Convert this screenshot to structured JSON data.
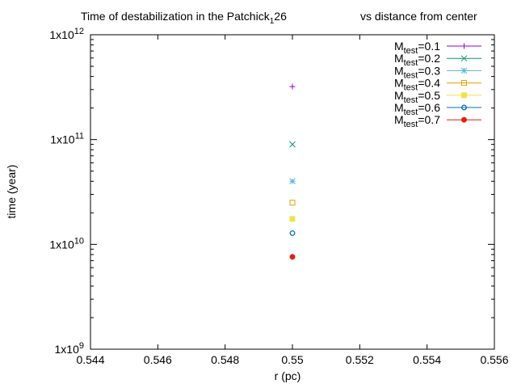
{
  "chart_data": {
    "type": "scatter",
    "title": {
      "main": "Time of destabilization in the Patchick",
      "sub": "1",
      "after": "26",
      "right": "vs distance from center"
    },
    "xlabel": "r (pc)",
    "ylabel": "time (year)",
    "xlim": [
      0.544,
      0.556
    ],
    "ylim": [
      1000000000.0,
      1000000000000.0
    ],
    "yscale": "log",
    "xticks": [
      {
        "value": 0.544,
        "label": "0.544"
      },
      {
        "value": 0.546,
        "label": "0.546"
      },
      {
        "value": 0.548,
        "label": "0.548"
      },
      {
        "value": 0.55,
        "label": "0.55"
      },
      {
        "value": 0.552,
        "label": "0.552"
      },
      {
        "value": 0.554,
        "label": "0.554"
      },
      {
        "value": 0.556,
        "label": "0.556"
      }
    ],
    "yticks": [
      {
        "value": 1000000000.0,
        "base": "1x10",
        "exp": "9"
      },
      {
        "value": 10000000000.0,
        "base": "1x10",
        "exp": "10"
      },
      {
        "value": 100000000000.0,
        "base": "1x10",
        "exp": "11"
      },
      {
        "value": 1000000000000.0,
        "base": "1x10",
        "exp": "12"
      }
    ],
    "grid": false,
    "legend_position": "top-right",
    "series": [
      {
        "name_main": "M",
        "name_sub": "test",
        "name_rest": "=0.1",
        "color": "#9400d3",
        "marker": "plus",
        "points": [
          [
            0.55,
            320000000000.0
          ]
        ]
      },
      {
        "name_main": "M",
        "name_sub": "test",
        "name_rest": "=0.2",
        "color": "#009e73",
        "marker": "cross",
        "points": [
          [
            0.55,
            90000000000.0
          ]
        ]
      },
      {
        "name_main": "M",
        "name_sub": "test",
        "name_rest": "=0.3",
        "color": "#56b4e9",
        "marker": "star",
        "points": [
          [
            0.55,
            40000000000.0
          ]
        ]
      },
      {
        "name_main": "M",
        "name_sub": "test",
        "name_rest": "=0.4",
        "color": "#e69f00",
        "marker": "open-square",
        "points": [
          [
            0.55,
            25000000000.0
          ]
        ]
      },
      {
        "name_main": "M",
        "name_sub": "test",
        "name_rest": "=0.5",
        "color": "#f0e442",
        "marker": "filled-square",
        "points": [
          [
            0.55,
            17500000000.0
          ]
        ]
      },
      {
        "name_main": "M",
        "name_sub": "test",
        "name_rest": "=0.6",
        "color": "#0072b2",
        "marker": "open-circle",
        "points": [
          [
            0.55,
            12800000000.0
          ]
        ]
      },
      {
        "name_main": "M",
        "name_sub": "test",
        "name_rest": "=0.7",
        "color": "#e51e10",
        "marker": "filled-circle",
        "points": [
          [
            0.55,
            7600000000.0
          ]
        ]
      }
    ]
  }
}
